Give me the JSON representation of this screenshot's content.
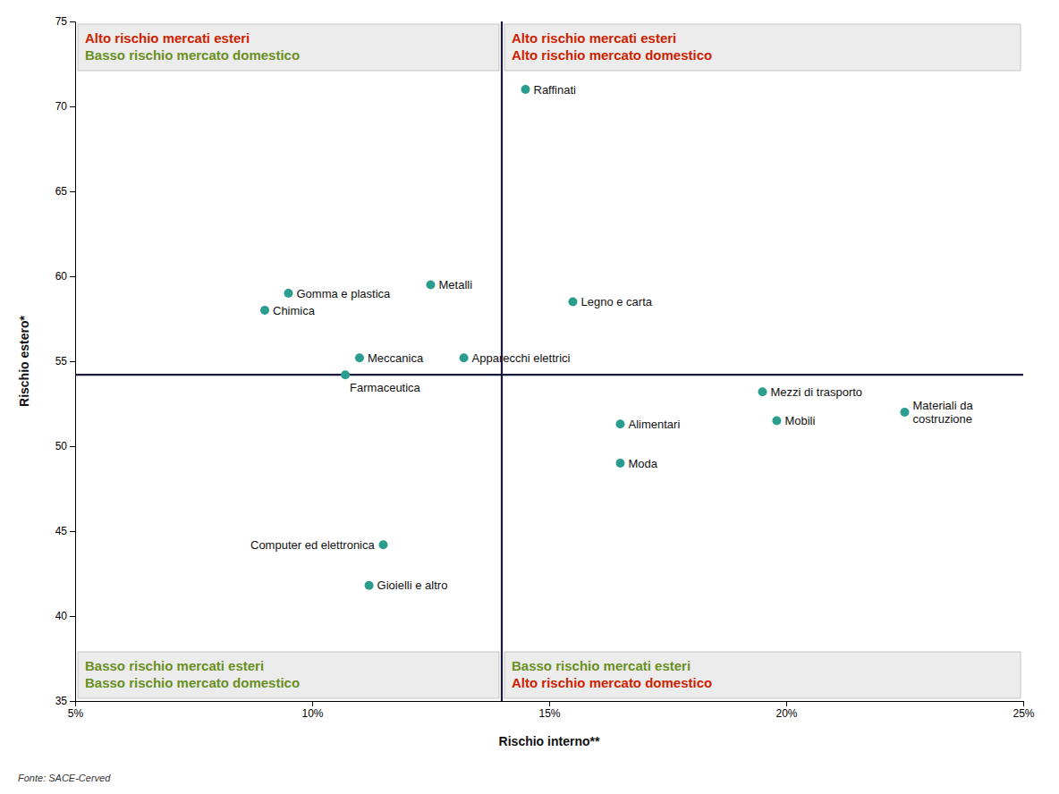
{
  "chart_data": {
    "type": "scatter",
    "xlabel": "Rischio interno**",
    "ylabel": "Rischio estero*",
    "point_labels": [
      "Raffinati",
      "Metalli",
      "Gomma e plastica",
      "Chimica",
      "Legno e carta",
      "Meccanica",
      "Apparecchi elettrici",
      "Farmaceutica",
      "Alimentari",
      "Moda",
      "Mezzi di trasporto",
      "Mobili",
      "Materiali da\ncostruzione",
      "Computer ed elettronica",
      "Gioielli e altro"
    ],
    "x": [
      0.145,
      0.125,
      0.095,
      0.09,
      0.155,
      0.11,
      0.132,
      0.107,
      0.165,
      0.165,
      0.195,
      0.198,
      0.225,
      0.115,
      0.112
    ],
    "values": [
      71.0,
      59.5,
      59.0,
      58.0,
      58.5,
      55.2,
      55.2,
      54.2,
      51.3,
      49.0,
      53.2,
      51.5,
      52.0,
      44.2,
      41.8
    ],
    "color": "#2a9d8f",
    "xlim": [
      0.05,
      0.25
    ],
    "ylim": [
      35,
      75
    ],
    "xticks": [
      {
        "value": 0.05,
        "label": "5%"
      },
      {
        "value": 0.1,
        "label": "10%"
      },
      {
        "value": 0.15,
        "label": "15%"
      },
      {
        "value": 0.2,
        "label": "20%"
      },
      {
        "value": 0.25,
        "label": "25%"
      }
    ],
    "yticks": [
      35,
      40,
      45,
      50,
      55,
      60,
      65,
      70,
      75
    ],
    "grid": false,
    "reference_lines": {
      "x": 0.14,
      "y": 54.2,
      "color": "#1a1a3e"
    },
    "annotations": [
      {
        "lines": [
          {
            "text": "Alto rischio mercati esteri",
            "color": "#cc2200"
          },
          {
            "text": "Basso rischio mercato domestico",
            "color": "#6a8f1f"
          }
        ]
      },
      {
        "lines": [
          {
            "text": "Alto rischio mercati esteri",
            "color": "#cc2200"
          },
          {
            "text": "Alto rischio mercato domestico",
            "color": "#cc2200"
          }
        ]
      },
      {
        "lines": [
          {
            "text": "Basso rischio mercati esteri",
            "color": "#6a8f1f"
          },
          {
            "text": "Basso rischio mercato domestico",
            "color": "#6a8f1f"
          }
        ]
      },
      {
        "lines": [
          {
            "text": "Basso rischio mercati esteri",
            "color": "#6a8f1f"
          },
          {
            "text": "Alto rischio mercato domestico",
            "color": "#cc2200"
          }
        ]
      }
    ],
    "source": "Fonte: SACE-Cerved"
  }
}
